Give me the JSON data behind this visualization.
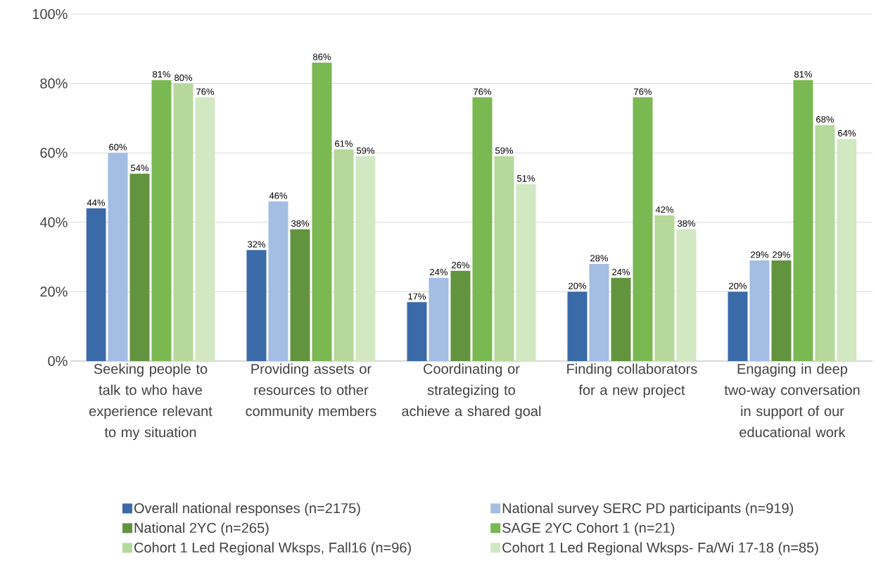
{
  "chart_data": {
    "type": "bar",
    "categories": [
      "Seeking people to talk to who have experience relevant to my situation",
      "Providing assets or resources to other community members",
      "Coordinating or strategizing to achieve a shared goal",
      "Finding collaborators for a new project",
      "Engaging in deep two-way conversation in support of our educational work"
    ],
    "series": [
      {
        "name": "Overall national responses (n=2175)",
        "color": "#3b6aa8",
        "values": [
          44,
          32,
          17,
          20,
          20
        ],
        "value_labels": [
          "44%",
          "32%",
          "17%",
          "20%",
          "20%"
        ]
      },
      {
        "name": "National survey SERC PD participants (n=919)",
        "color": "#a3bde3",
        "values": [
          60,
          46,
          24,
          28,
          29
        ],
        "value_labels": [
          "60%",
          "46%",
          "24%",
          "28%",
          "29%"
        ]
      },
      {
        "name": "National 2YC (n=265)",
        "color": "#62943f",
        "values": [
          54,
          38,
          26,
          24,
          29
        ],
        "value_labels": [
          "54%",
          "38%",
          "26%",
          "24%",
          "29%"
        ]
      },
      {
        "name": "SAGE 2YC Cohort 1 (n=21)",
        "color": "#7ab852",
        "values": [
          81,
          86,
          76,
          76,
          81
        ],
        "value_labels": [
          "81%",
          "86%",
          "76%",
          "76%",
          "81%"
        ]
      },
      {
        "name": "Cohort 1 Led Regional Wksps, Fall16 (n=96)",
        "color": "#b5d89b",
        "values": [
          80,
          61,
          59,
          42,
          68
        ],
        "value_labels": [
          "80%",
          "61%",
          "59%",
          "42%",
          "68%"
        ]
      },
      {
        "name": "Cohort 1 Led Regional Wksps- Fa/Wi 17-18 (n=85)",
        "color": "#d1e8c2",
        "values": [
          76,
          59,
          51,
          38,
          64
        ],
        "value_labels": [
          "76%",
          "59%",
          "51%",
          "38%",
          "64%"
        ]
      }
    ],
    "ylim": [
      0,
      100
    ],
    "yticks": [
      {
        "value": 0,
        "label": "0%"
      },
      {
        "value": 20,
        "label": "20%"
      },
      {
        "value": 40,
        "label": "40%"
      },
      {
        "value": 60,
        "label": "60%"
      },
      {
        "value": 80,
        "label": "80%"
      },
      {
        "value": 100,
        "label": "100%"
      }
    ],
    "grid": "y",
    "legend": "bottom"
  }
}
